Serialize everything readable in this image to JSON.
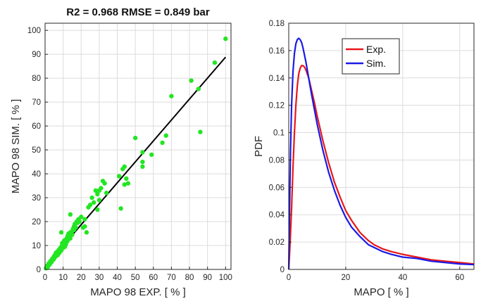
{
  "chart_data": [
    {
      "type": "scatter",
      "title": "R2 = 0.968 RMSE = 0.849 bar",
      "xlabel": "MAPO 98 EXP. [ % ]",
      "ylabel": "MAPO 98 SIM. [ % ]",
      "xlim": [
        0,
        103
      ],
      "ylim": [
        0,
        103
      ],
      "xticks": [
        0,
        10,
        20,
        30,
        40,
        50,
        60,
        70,
        80,
        90,
        100
      ],
      "yticks": [
        0,
        10,
        20,
        30,
        40,
        50,
        60,
        70,
        80,
        90,
        100
      ],
      "grid": true,
      "point_color": "#22e622",
      "fit_color": "#000000",
      "points": [
        [
          0.5,
          0.5
        ],
        [
          1,
          1.5
        ],
        [
          1.5,
          1
        ],
        [
          2,
          2.5
        ],
        [
          2.5,
          2
        ],
        [
          3,
          3.5
        ],
        [
          3.5,
          3
        ],
        [
          4,
          4.5
        ],
        [
          4.5,
          4
        ],
        [
          5,
          5.5
        ],
        [
          5,
          4.5
        ],
        [
          5.5,
          6
        ],
        [
          6,
          5.5
        ],
        [
          6,
          7
        ],
        [
          6.5,
          6.5
        ],
        [
          7,
          7.5
        ],
        [
          7,
          6
        ],
        [
          7.5,
          8
        ],
        [
          8,
          8.5
        ],
        [
          8,
          7
        ],
        [
          8.5,
          9
        ],
        [
          9,
          9.5
        ],
        [
          9,
          8
        ],
        [
          9.5,
          10
        ],
        [
          9.5,
          11
        ],
        [
          10,
          10.5
        ],
        [
          10,
          9
        ],
        [
          10.5,
          11.5
        ],
        [
          10.5,
          12
        ],
        [
          11,
          11
        ],
        [
          11,
          9.5
        ],
        [
          11.5,
          12.5
        ],
        [
          11.5,
          10.5
        ],
        [
          12,
          13
        ],
        [
          12,
          11.5
        ],
        [
          12.5,
          12
        ],
        [
          12.5,
          14
        ],
        [
          13,
          13.5
        ],
        [
          13,
          15
        ],
        [
          13.5,
          14.5
        ],
        [
          14,
          15.5
        ],
        [
          14,
          13
        ],
        [
          15,
          16
        ],
        [
          15,
          14.5
        ],
        [
          15.5,
          17
        ],
        [
          16,
          16.5
        ],
        [
          16,
          18
        ],
        [
          16.5,
          19
        ],
        [
          17,
          17.5
        ],
        [
          17.5,
          20
        ],
        [
          18,
          19.5
        ],
        [
          18.5,
          21
        ],
        [
          19,
          20
        ],
        [
          20,
          22
        ],
        [
          21,
          17.5
        ],
        [
          22,
          18
        ],
        [
          22,
          21
        ],
        [
          23,
          15.5
        ],
        [
          24,
          26
        ],
        [
          25,
          27
        ],
        [
          26,
          30
        ],
        [
          27,
          28
        ],
        [
          28,
          33
        ],
        [
          29,
          31.5
        ],
        [
          30,
          33
        ],
        [
          30,
          29
        ],
        [
          31,
          34
        ],
        [
          32,
          37
        ],
        [
          33,
          36
        ],
        [
          34,
          32
        ],
        [
          9,
          15.5
        ],
        [
          14,
          23
        ],
        [
          29,
          25
        ],
        [
          41,
          39
        ],
        [
          42,
          25.5
        ],
        [
          43,
          42
        ],
        [
          44,
          43
        ],
        [
          44,
          35.5
        ],
        [
          45,
          38
        ],
        [
          46,
          36
        ],
        [
          50,
          55
        ],
        [
          54,
          49
        ],
        [
          54,
          45
        ],
        [
          54,
          43
        ],
        [
          59,
          48
        ],
        [
          65,
          53
        ],
        [
          67,
          56
        ],
        [
          70,
          72.5
        ],
        [
          81,
          79
        ],
        [
          85,
          75.5
        ],
        [
          86,
          57.5
        ],
        [
          94,
          86.5
        ],
        [
          100,
          96.5
        ]
      ],
      "fit_line": {
        "x": [
          0,
          100
        ],
        "y": [
          1.2,
          88.8
        ]
      }
    },
    {
      "type": "line",
      "xlabel": "MAPO [ % ]",
      "ylabel": "PDF",
      "xlim": [
        0,
        65
      ],
      "ylim": [
        0,
        0.18
      ],
      "xticks": [
        0,
        20,
        40,
        60
      ],
      "yticks": [
        0,
        0.02,
        0.04,
        0.06,
        0.08,
        0.1,
        0.12,
        0.14,
        0.16,
        0.18
      ],
      "ytick_labels": [
        "0",
        "0.02",
        "0.04",
        "0.06",
        "0.08",
        "0.1",
        "0.12",
        "0.14",
        "0.16",
        "0.18"
      ],
      "grid": true,
      "legend_position": "top-center",
      "series": [
        {
          "name": "Exp.",
          "color": "#e8161b",
          "x": [
            0,
            0.5,
            1,
            1.5,
            2,
            2.5,
            3,
            3.5,
            4,
            4.5,
            5,
            5.5,
            6,
            7,
            8,
            9,
            10,
            12,
            14,
            16,
            18,
            20,
            22,
            25,
            28,
            30,
            33,
            36,
            40,
            45,
            50,
            55,
            60,
            65
          ],
          "y": [
            0,
            0.02,
            0.045,
            0.075,
            0.1,
            0.12,
            0.134,
            0.143,
            0.147,
            0.149,
            0.149,
            0.148,
            0.146,
            0.14,
            0.131,
            0.122,
            0.112,
            0.094,
            0.078,
            0.064,
            0.053,
            0.043,
            0.036,
            0.027,
            0.021,
            0.018,
            0.015,
            0.013,
            0.011,
            0.009,
            0.007,
            0.006,
            0.005,
            0.004
          ]
        },
        {
          "name": "Sim.",
          "color": "#1a1ae6",
          "x": [
            0,
            0.3,
            0.6,
            1,
            1.5,
            2,
            2.5,
            3,
            3.5,
            4,
            4.5,
            5,
            6,
            7,
            8,
            9,
            10,
            12,
            14,
            16,
            18,
            20,
            22,
            25,
            28,
            30,
            33,
            36,
            40,
            45,
            50,
            55,
            60,
            65
          ],
          "y": [
            0,
            0.045,
            0.085,
            0.12,
            0.145,
            0.158,
            0.165,
            0.168,
            0.169,
            0.168,
            0.166,
            0.162,
            0.152,
            0.14,
            0.128,
            0.117,
            0.106,
            0.087,
            0.071,
            0.058,
            0.047,
            0.038,
            0.031,
            0.024,
            0.018,
            0.016,
            0.013,
            0.011,
            0.009,
            0.008,
            0.006,
            0.005,
            0.004,
            0.0035
          ]
        }
      ]
    }
  ]
}
